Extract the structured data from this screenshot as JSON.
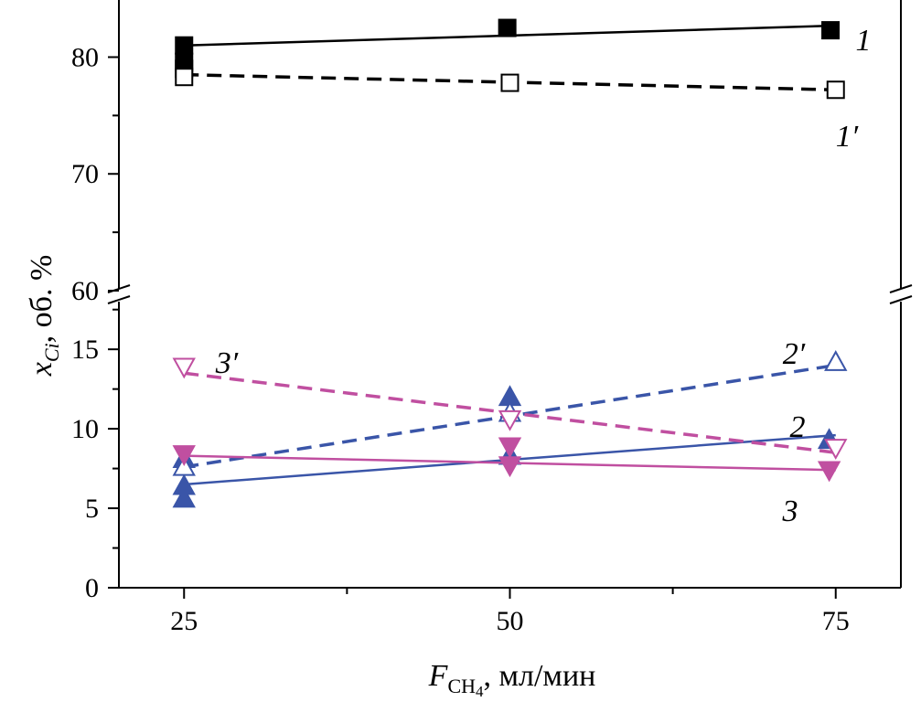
{
  "chart_data": {
    "type": "scatter",
    "xlabel": {
      "main": "F",
      "sub": "CH",
      "sub2": "4",
      "rest": ", мл/мин"
    },
    "ylabel": {
      "main": "x",
      "sub": "Ci",
      "rest": ", об. %"
    },
    "x_ticks": [
      25,
      50,
      75
    ],
    "xlim": [
      20,
      80
    ],
    "y_ticks_lower": [
      0,
      5,
      10,
      15
    ],
    "ylim_lower": [
      0,
      18
    ],
    "y_ticks_upper": [
      60,
      70,
      80
    ],
    "ylim_upper": [
      60,
      84.5
    ],
    "axis_break": true,
    "grid": false,
    "series": [
      {
        "name": "1",
        "panel": "upper",
        "marker": "square-filled",
        "line": "solid",
        "color": "#000000",
        "points": [
          [
            25,
            81.0
          ],
          [
            25,
            79.6
          ],
          [
            25,
            79.0
          ],
          [
            49.8,
            82.5
          ],
          [
            74.6,
            82.3
          ]
        ],
        "fit": [
          [
            25,
            81.0
          ],
          [
            75,
            82.7
          ]
        ]
      },
      {
        "name": "1′",
        "panel": "upper",
        "marker": "square-open",
        "line": "dashed",
        "color": "#000000",
        "points": [
          [
            25,
            78.3
          ],
          [
            50,
            77.8
          ],
          [
            75,
            77.2
          ]
        ],
        "fit": [
          [
            25,
            78.5
          ],
          [
            75,
            77.2
          ]
        ]
      },
      {
        "name": "2",
        "panel": "lower",
        "marker": "triangle-up-filled",
        "line": "solid",
        "color": "#3a55a8",
        "points": [
          [
            25,
            5.6
          ],
          [
            25,
            6.4
          ],
          [
            25,
            8.1
          ],
          [
            50,
            8.3
          ],
          [
            50,
            12.0
          ],
          [
            74.5,
            9.3
          ]
        ],
        "fit": [
          [
            25,
            6.5
          ],
          [
            75,
            9.6
          ]
        ]
      },
      {
        "name": "2′",
        "panel": "lower",
        "marker": "triangle-up-open",
        "line": "dashed",
        "color": "#3a55a8",
        "points": [
          [
            25,
            7.6
          ],
          [
            50,
            11.0
          ],
          [
            75,
            14.2
          ]
        ],
        "fit": [
          [
            25,
            7.6
          ],
          [
            75,
            14.0
          ]
        ]
      },
      {
        "name": "3",
        "panel": "lower",
        "marker": "triangle-down-filled",
        "line": "solid",
        "color": "#c04fa0",
        "points": [
          [
            25,
            8.4
          ],
          [
            50,
            7.7
          ],
          [
            50,
            8.9
          ],
          [
            74.5,
            7.4
          ]
        ],
        "fit": [
          [
            25,
            8.3
          ],
          [
            75,
            7.4
          ]
        ]
      },
      {
        "name": "3′",
        "panel": "lower",
        "marker": "triangle-down-open",
        "line": "dashed",
        "color": "#c04fa0",
        "points": [
          [
            25,
            13.9
          ],
          [
            50,
            10.6
          ],
          [
            75,
            8.8
          ]
        ],
        "fit": [
          [
            25,
            13.5
          ],
          [
            75,
            8.5
          ]
        ]
      }
    ]
  }
}
